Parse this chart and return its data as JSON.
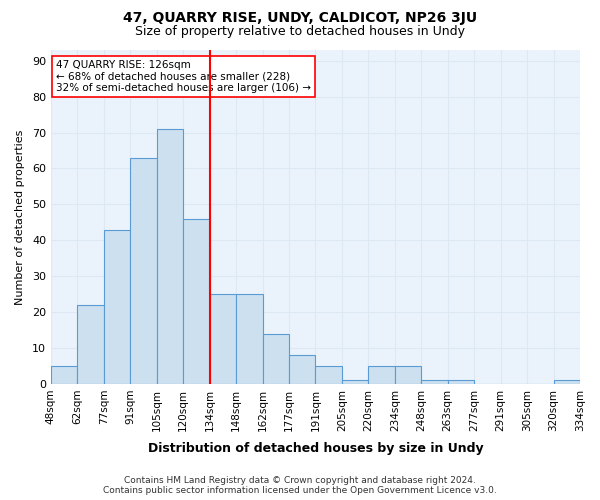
{
  "title": "47, QUARRY RISE, UNDY, CALDICOT, NP26 3JU",
  "subtitle": "Size of property relative to detached houses in Undy",
  "xlabel": "Distribution of detached houses by size in Undy",
  "ylabel": "Number of detached properties",
  "footer": "Contains HM Land Registry data © Crown copyright and database right 2024.\nContains public sector information licensed under the Open Government Licence v3.0.",
  "tick_labels": [
    "48sqm",
    "62sqm",
    "77sqm",
    "91sqm",
    "105sqm",
    "120sqm",
    "134sqm",
    "148sqm",
    "162sqm",
    "177sqm",
    "191sqm",
    "205sqm",
    "220sqm",
    "234sqm",
    "248sqm",
    "263sqm",
    "277sqm",
    "291sqm",
    "305sqm",
    "320sqm",
    "334sqm"
  ],
  "values": [
    5,
    22,
    43,
    63,
    71,
    46,
    25,
    25,
    14,
    8,
    5,
    1,
    5,
    5,
    1,
    1,
    0,
    0,
    0,
    1
  ],
  "bar_color": "#cce0f0",
  "bar_edge_color": "#5b9bd5",
  "vline_x": 5.5,
  "vline_color": "red",
  "annotation_text": "47 QUARRY RISE: 126sqm\n← 68% of detached houses are smaller (228)\n32% of semi-detached houses are larger (106) →",
  "annotation_box_color": "white",
  "annotation_box_edge_color": "red",
  "ylim": [
    0,
    93
  ],
  "yticks": [
    0,
    10,
    20,
    30,
    40,
    50,
    60,
    70,
    80,
    90
  ],
  "grid_color": "#dce9f5",
  "background_color": "#eaf3fb"
}
